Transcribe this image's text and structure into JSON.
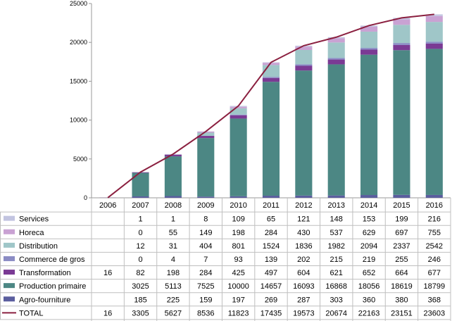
{
  "chart_data": {
    "type": "bar",
    "stacked": true,
    "line_series": "TOTAL",
    "categories": [
      "2006",
      "2007",
      "2008",
      "2009",
      "2010",
      "2011",
      "2012",
      "2013",
      "2014",
      "2015",
      "2016"
    ],
    "ylim": [
      0,
      25000
    ],
    "yticks": [
      0,
      5000,
      10000,
      15000,
      20000,
      25000
    ],
    "yticks_labels": [
      "0",
      "5000",
      "10000",
      "15000",
      "20000",
      "25000"
    ],
    "legend_placement": "data-table",
    "grid": false,
    "series": [
      {
        "name": "Agro-fourniture",
        "color": "#5b5e9e",
        "values": [
          null,
          185,
          225,
          159,
          197,
          269,
          287,
          303,
          360,
          380,
          368
        ],
        "labels": [
          "",
          "185",
          "225",
          "159",
          "197",
          "269",
          "287",
          "303",
          "360",
          "380",
          "368"
        ]
      },
      {
        "name": "Production primaire",
        "color": "#4c8784",
        "values": [
          null,
          3025,
          5113,
          7525,
          10000,
          14657,
          16093,
          16868,
          18056,
          18619,
          18799
        ],
        "labels": [
          "",
          "3025",
          "5113",
          "7525",
          "10000",
          "14657",
          "16093",
          "16868",
          "18056",
          "18619",
          "18799"
        ]
      },
      {
        "name": "Transformation",
        "color": "#7a3a94",
        "values": [
          16,
          82,
          198,
          284,
          425,
          497,
          604,
          621,
          652,
          664,
          677
        ],
        "labels": [
          "16",
          "82",
          "198",
          "284",
          "425",
          "497",
          "604",
          "621",
          "652",
          "664",
          "677"
        ]
      },
      {
        "name": "Commerce de gros",
        "color": "#8b8cc4",
        "values": [
          null,
          0,
          4,
          7,
          93,
          139,
          202,
          215,
          219,
          255,
          246
        ],
        "labels": [
          "",
          "0",
          "4",
          "7",
          "93",
          "139",
          "202",
          "215",
          "219",
          "255",
          "246"
        ]
      },
      {
        "name": "Distribution",
        "color": "#9fc6c8",
        "values": [
          null,
          12,
          31,
          404,
          801,
          1524,
          1836,
          1982,
          2094,
          2337,
          2542
        ],
        "labels": [
          "",
          "12",
          "31",
          "404",
          "801",
          "1524",
          "1836",
          "1982",
          "2094",
          "2337",
          "2542"
        ]
      },
      {
        "name": "Horeca",
        "color": "#c9a2d3",
        "values": [
          null,
          0,
          55,
          149,
          198,
          284,
          430,
          537,
          629,
          697,
          755
        ],
        "labels": [
          "",
          "0",
          "55",
          "149",
          "198",
          "284",
          "430",
          "537",
          "629",
          "697",
          "755"
        ]
      },
      {
        "name": "Services",
        "color": "#c2c4e0",
        "values": [
          null,
          1,
          1,
          8,
          109,
          65,
          121,
          148,
          153,
          199,
          216
        ],
        "labels": [
          "",
          "1",
          "1",
          "8",
          "109",
          "65",
          "121",
          "148",
          "153",
          "199",
          "216"
        ]
      },
      {
        "name": "TOTAL",
        "color": "#8b2040",
        "values": [
          16,
          3305,
          5627,
          8536,
          11823,
          17435,
          19573,
          20674,
          22163,
          23151,
          23603
        ],
        "labels": [
          "16",
          "3305",
          "5627",
          "8536",
          "11823",
          "17435",
          "19573",
          "20674",
          "22163",
          "23151",
          "23603"
        ]
      }
    ],
    "table_order": [
      "Services",
      "Horeca",
      "Distribution",
      "Commerce de gros",
      "Transformation",
      "Production primaire",
      "Agro-fourniture",
      "TOTAL"
    ]
  }
}
